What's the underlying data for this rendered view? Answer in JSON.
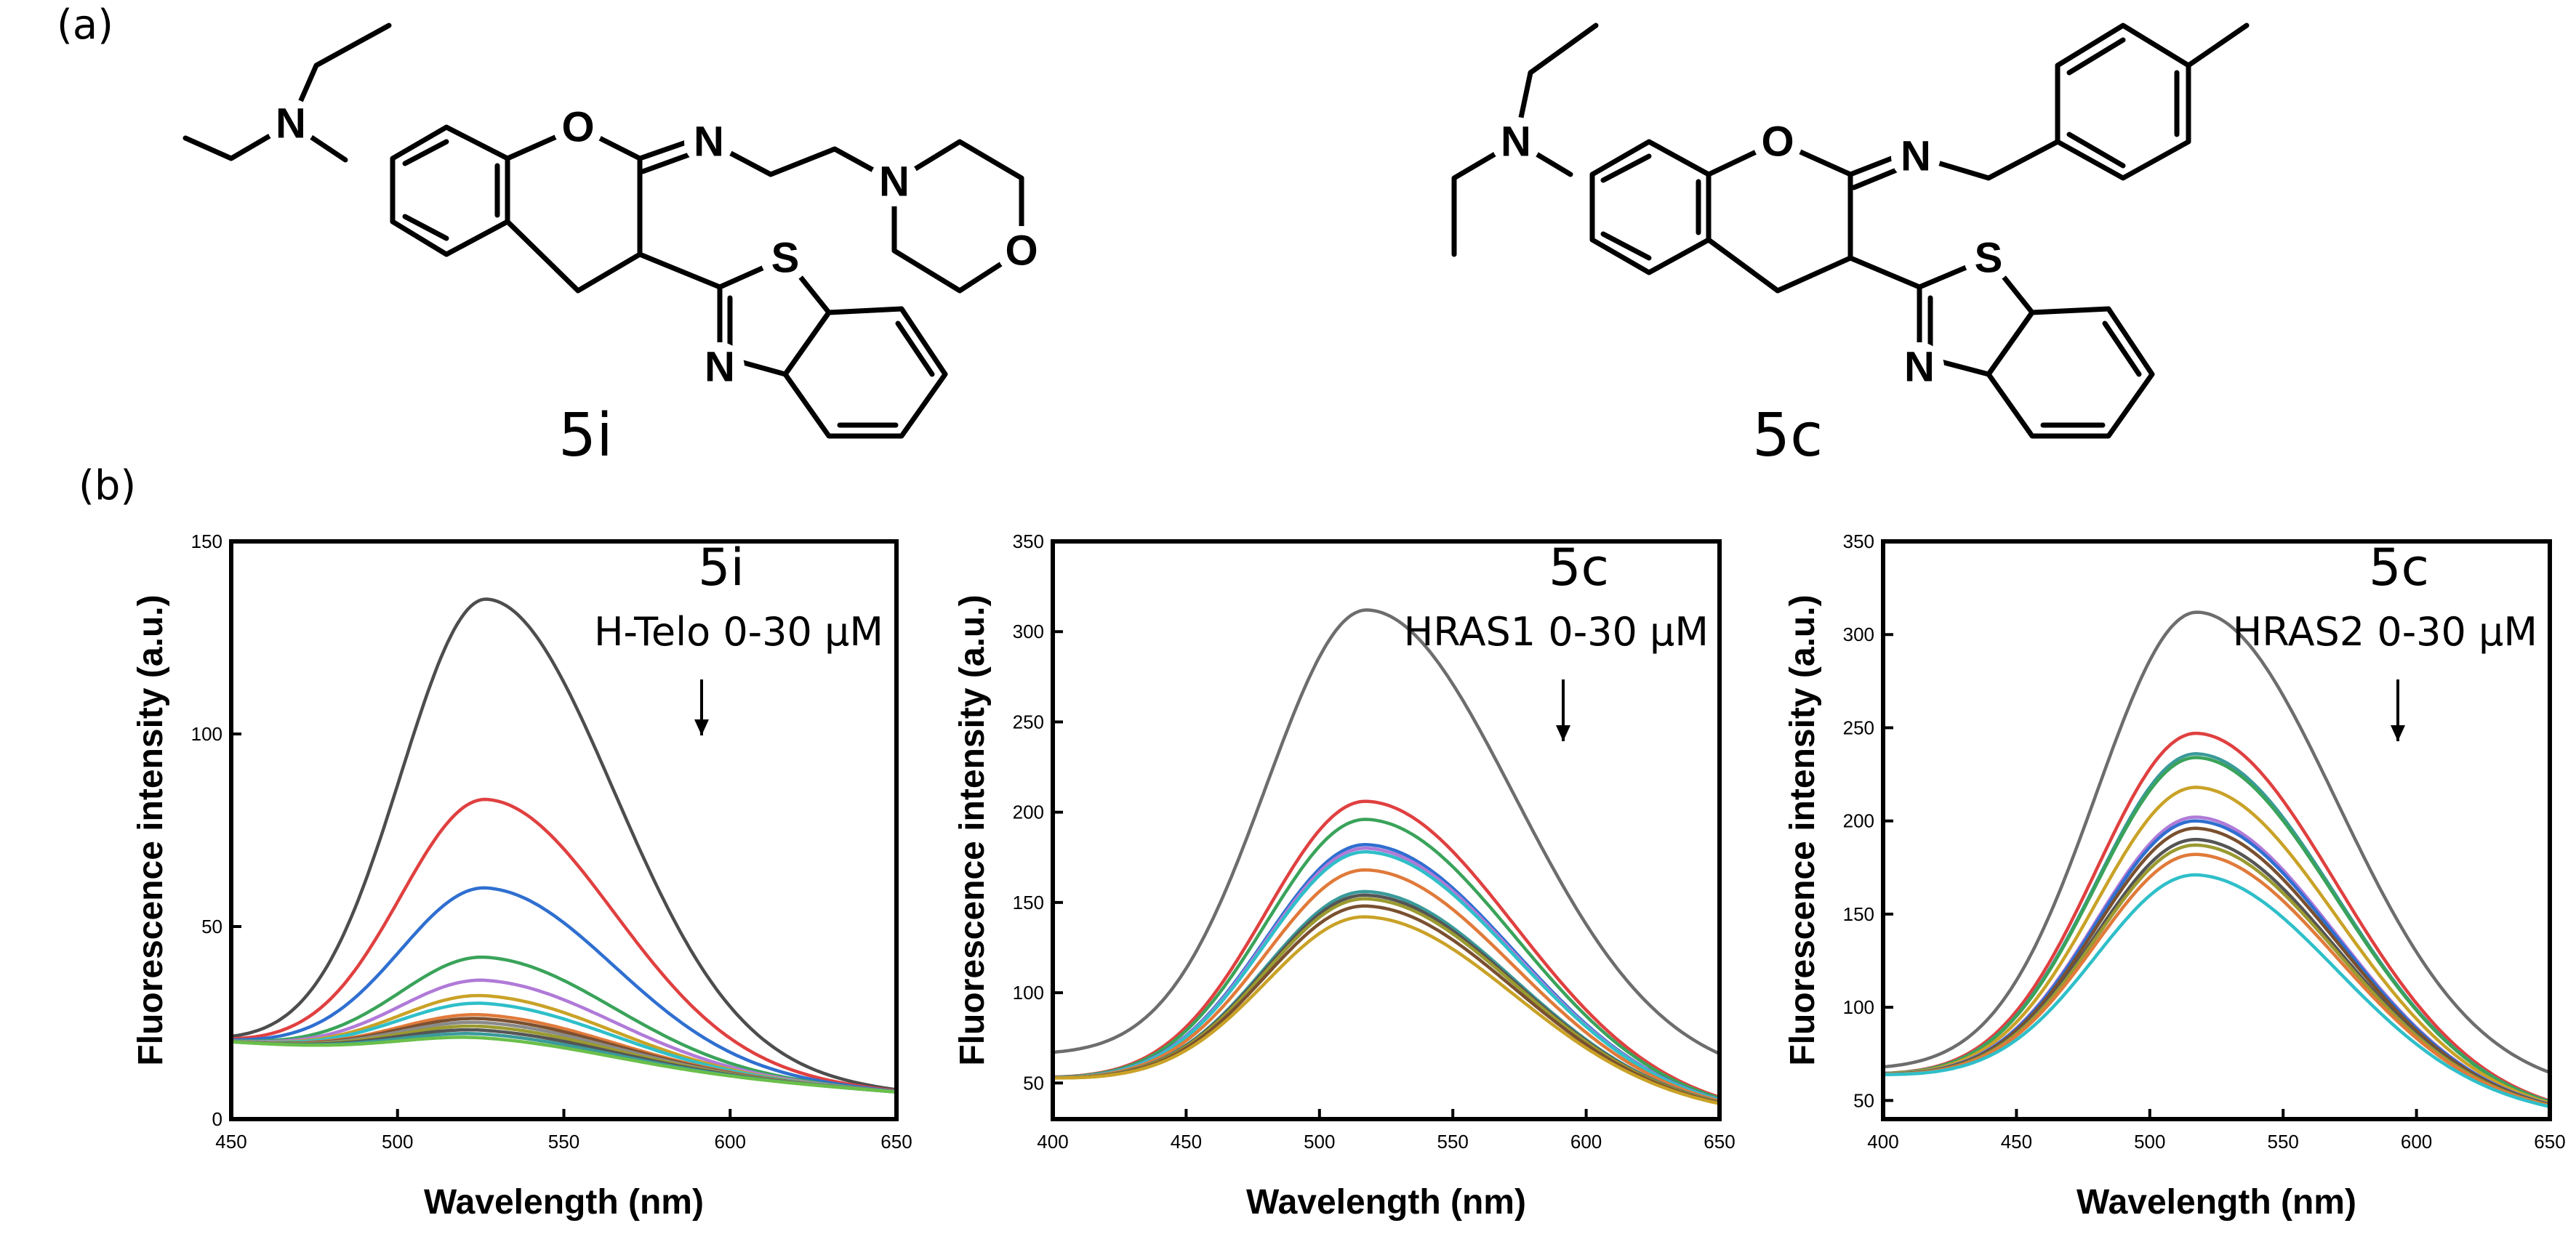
{
  "panels": {
    "a": "(a)",
    "b": "(b)"
  },
  "compounds": {
    "left": "5i",
    "right": "5c"
  },
  "atoms": {
    "N": "N",
    "O": "O",
    "S": "S"
  },
  "charts": [
    {
      "type": "line",
      "title": "",
      "xlabel": "Wavelength (nm)",
      "ylabel": "Fluorescence intensity (a.u.)",
      "xlim": [
        450,
        650
      ],
      "ylim": [
        0,
        150
      ],
      "xticks": [
        450,
        500,
        550,
        600,
        650
      ],
      "yticks": [
        0,
        50,
        100,
        150
      ],
      "inset_compound": "5i",
      "inset_condition": "H-Telo 0-30 μM",
      "baseline": {
        "y_start": 20,
        "y_end": 7
      },
      "peak_x": 527,
      "sigma_left": 26,
      "sigma_right": 38,
      "series": [
        {
          "color": "#4d4d4d",
          "peak": 135
        },
        {
          "color": "#e04040",
          "peak": 83
        },
        {
          "color": "#2f6fd0",
          "peak": 60
        },
        {
          "color": "#3aa35a",
          "peak": 42
        },
        {
          "color": "#b07ad8",
          "peak": 36
        },
        {
          "color": "#c9a227",
          "peak": 32
        },
        {
          "color": "#2fbfc9",
          "peak": 30
        },
        {
          "color": "#e07a3a",
          "peak": 27
        },
        {
          "color": "#7a5030",
          "peak": 26
        },
        {
          "color": "#8a8a8a",
          "peak": 25
        },
        {
          "color": "#9a9a30",
          "peak": 24
        },
        {
          "color": "#555555",
          "peak": 23
        },
        {
          "color": "#3a9a9a",
          "peak": 22
        },
        {
          "color": "#6abf4a",
          "peak": 21
        }
      ]
    },
    {
      "type": "line",
      "title": "",
      "xlabel": "Wavelength (nm)",
      "ylabel": "Fluorescence intensity (a.u.)",
      "xlim": [
        400,
        650
      ],
      "ylim": [
        30,
        350
      ],
      "xticks": [
        400,
        450,
        500,
        550,
        600,
        650
      ],
      "yticks": [
        50,
        100,
        150,
        200,
        250,
        300,
        350
      ],
      "inset_compound": "5c",
      "inset_condition": "HRAS1 0-30 μM",
      "baseline": {
        "y_start": 52,
        "y_end": 33
      },
      "peak_x": 518,
      "sigma_left": 38,
      "sigma_right": 55,
      "series": [
        {
          "color": "#6d6d6d",
          "peak": 312,
          "y_start": 65,
          "y_end": 52
        },
        {
          "color": "#e04040",
          "peak": 206
        },
        {
          "color": "#3aa35a",
          "peak": 196
        },
        {
          "color": "#2f6fd0",
          "peak": 182
        },
        {
          "color": "#b07ad8",
          "peak": 180
        },
        {
          "color": "#2fbfc9",
          "peak": 178
        },
        {
          "color": "#e07a3a",
          "peak": 168
        },
        {
          "color": "#3a9a9a",
          "peak": 156
        },
        {
          "color": "#555555",
          "peak": 154
        },
        {
          "color": "#9a9a30",
          "peak": 152
        },
        {
          "color": "#7a5030",
          "peak": 148
        },
        {
          "color": "#c9a227",
          "peak": 142
        }
      ]
    },
    {
      "type": "line",
      "title": "",
      "xlabel": "Wavelength (nm)",
      "ylabel": "Fluorescence intensity (a.u.)",
      "xlim": [
        400,
        650
      ],
      "ylim": [
        40,
        350
      ],
      "xticks": [
        400,
        450,
        500,
        550,
        600,
        650
      ],
      "yticks": [
        50,
        100,
        150,
        200,
        250,
        300,
        350
      ],
      "inset_compound": "5c",
      "inset_condition": "HRAS2 0-30 μM",
      "baseline": {
        "y_start": 63,
        "y_end": 42
      },
      "peak_x": 518,
      "sigma_left": 38,
      "sigma_right": 52,
      "series": [
        {
          "color": "#6d6d6d",
          "peak": 312,
          "y_start": 66,
          "y_end": 55
        },
        {
          "color": "#e04040",
          "peak": 247
        },
        {
          "color": "#3a9a9a",
          "peak": 236
        },
        {
          "color": "#3aa35a",
          "peak": 234
        },
        {
          "color": "#c9a227",
          "peak": 218
        },
        {
          "color": "#b07ad8",
          "peak": 202
        },
        {
          "color": "#2f6fd0",
          "peak": 200
        },
        {
          "color": "#7a5030",
          "peak": 196
        },
        {
          "color": "#555555",
          "peak": 190
        },
        {
          "color": "#9a9a30",
          "peak": 187
        },
        {
          "color": "#e07a3a",
          "peak": 182
        },
        {
          "color": "#2fbfc9",
          "peak": 171
        }
      ]
    }
  ]
}
